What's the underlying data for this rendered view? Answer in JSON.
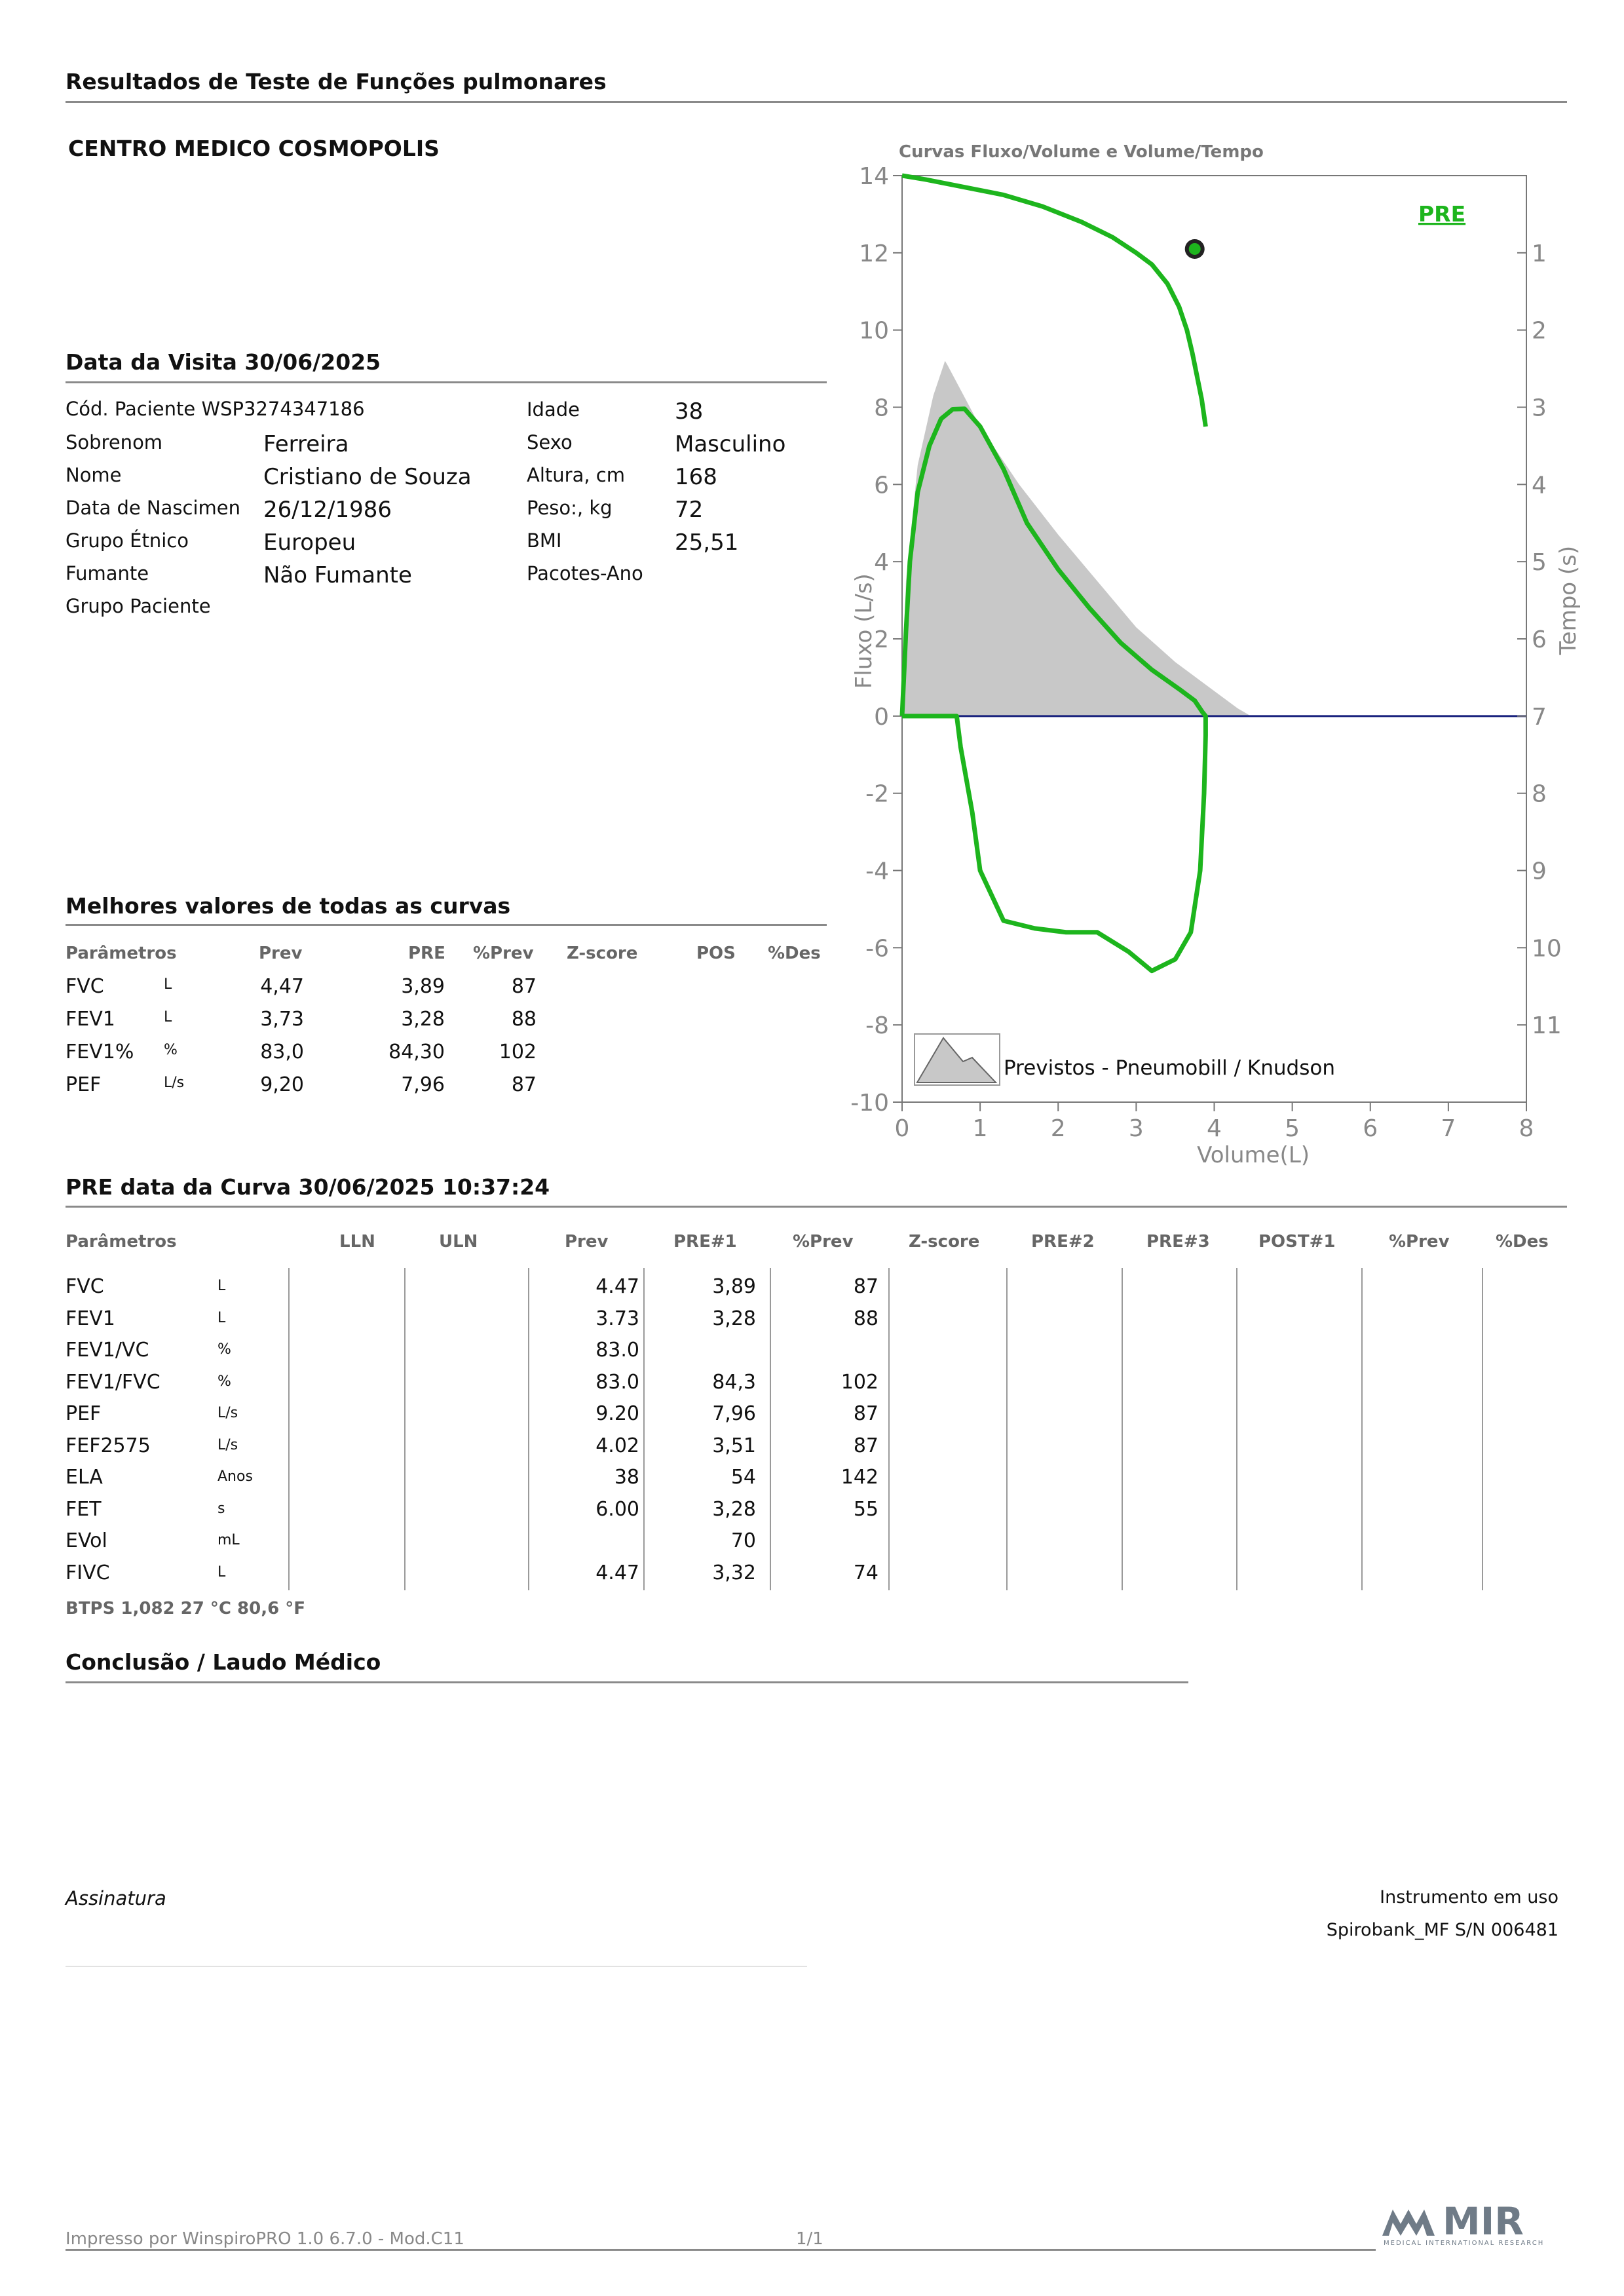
{
  "header": {
    "title": "Resultados de Teste de Funções pulmonares",
    "center": "CENTRO MEDICO COSMOPOLIS"
  },
  "visit": {
    "title": "Data da Visita 30/06/2025"
  },
  "patient": {
    "code": "Cód. Paciente WSP3274347186",
    "rows_left": [
      {
        "label": "Sobrenom",
        "value": "Ferreira"
      },
      {
        "label": "Nome",
        "value": "Cristiano de Souza"
      },
      {
        "label": "Data de Nascimen",
        "value": "26/12/1986"
      },
      {
        "label": "Grupo Étnico",
        "value": "Europeu"
      },
      {
        "label": "Fumante",
        "value": "Não Fumante"
      },
      {
        "label": "Grupo Paciente",
        "value": ""
      }
    ],
    "rows_right": [
      {
        "label": "Idade",
        "value": "38"
      },
      {
        "label": "Sexo",
        "value": "Masculino"
      },
      {
        "label": "Altura, cm",
        "value": "168"
      },
      {
        "label": "Peso:, kg",
        "value": "72"
      },
      {
        "label": "BMI",
        "value": "25,51"
      },
      {
        "label": "Pacotes-Ano",
        "value": ""
      }
    ]
  },
  "best": {
    "title": "Melhores valores de todas as curvas",
    "headers": [
      "Parâmetros",
      "Prev",
      "PRE",
      "%Prev",
      "Z-score",
      "POS",
      "%Des"
    ],
    "rows": [
      {
        "param": "FVC",
        "unit": "L",
        "prev": "4,47",
        "pre": "3,89",
        "pprev": "87"
      },
      {
        "param": "FEV1",
        "unit": "L",
        "prev": "3,73",
        "pre": "3,28",
        "pprev": "88"
      },
      {
        "param": "FEV1%",
        "unit": "%",
        "prev": "83,0",
        "pre": "84,30",
        "pprev": "102"
      },
      {
        "param": "PEF",
        "unit": "L/s",
        "prev": "9,20",
        "pre": "7,96",
        "pprev": "87"
      }
    ]
  },
  "curve": {
    "title": "PRE data da Curva 30/06/2025   10:37:24",
    "headers": [
      "Parâmetros",
      "LLN",
      "ULN",
      "Prev",
      "PRE#1",
      "%Prev",
      "Z-score",
      "PRE#2",
      "PRE#3",
      "POST#1",
      "%Prev",
      "%Des"
    ],
    "rows": [
      {
        "param": "FVC",
        "unit": "L",
        "prev": "4.47",
        "pre1": "3,89",
        "pprev": "87"
      },
      {
        "param": "FEV1",
        "unit": "L",
        "prev": "3.73",
        "pre1": "3,28",
        "pprev": "88"
      },
      {
        "param": "FEV1/VC",
        "unit": "%",
        "prev": "83.0",
        "pre1": "",
        "pprev": ""
      },
      {
        "param": "FEV1/FVC",
        "unit": "%",
        "prev": "83.0",
        "pre1": "84,3",
        "pprev": "102"
      },
      {
        "param": "PEF",
        "unit": "L/s",
        "prev": "9.20",
        "pre1": "7,96",
        "pprev": "87"
      },
      {
        "param": "FEF2575",
        "unit": "L/s",
        "prev": "4.02",
        "pre1": "3,51",
        "pprev": "87"
      },
      {
        "param": "ELA",
        "unit": "Anos",
        "prev": "38",
        "pre1": "54",
        "pprev": "142"
      },
      {
        "param": "FET",
        "unit": "s",
        "prev": "6.00",
        "pre1": "3,28",
        "pprev": "55"
      },
      {
        "param": "EVol",
        "unit": "mL",
        "prev": "",
        "pre1": "70",
        "pprev": ""
      },
      {
        "param": "FIVC",
        "unit": "L",
        "prev": "4.47",
        "pre1": "3,32",
        "pprev": "74"
      }
    ],
    "btps": "BTPS  1,082  27 °C  80,6 °F"
  },
  "conclusion": {
    "title": "Conclusão / Laudo Médico"
  },
  "signature": {
    "label": "Assinatura"
  },
  "instrument": {
    "label": "Instrumento em uso",
    "value": "Spirobank_MF S/N 006481"
  },
  "footer": {
    "printed": "Impresso por WinspiroPRO 1.0 6.7.0 - Mod.C11",
    "page": "1/1"
  },
  "logo": {
    "text": "MIR",
    "subtitle": "MEDICAL INTERNATIONAL RESEARCH"
  },
  "chart_data": {
    "type": "line",
    "title": "Curvas Fluxo/Volume e Volume/Tempo",
    "xlabel": "Volume(L)",
    "ylabel": "Fluxo (L/s)",
    "y2label": "Tempo (s)",
    "xlim": [
      0,
      8
    ],
    "ylim": [
      -10,
      14
    ],
    "y2lim": [
      0,
      11
    ],
    "xticks": [
      "0",
      "1",
      "2",
      "3",
      "4",
      "5",
      "6",
      "7",
      "8"
    ],
    "yticks": [
      "-10",
      "-8",
      "-6",
      "-4",
      "-2",
      "0",
      "2",
      "4",
      "6",
      "8",
      "10",
      "12",
      "14"
    ],
    "y2ticks": [
      "1",
      "2",
      "3",
      "4",
      "5",
      "6",
      "7",
      "8",
      "9",
      "10",
      "11"
    ],
    "pre_label": "PRE",
    "legend": "Previstos - Pneumobill / Knudson",
    "colors": {
      "pre": "#1db51d",
      "predicted": "#c8c8c8",
      "zero_line": "#1a237e",
      "axis_text": "#888888"
    },
    "series": [
      {
        "name": "Previstos - Pneumobill / Knudson",
        "x": [
          0,
          0.05,
          0.2,
          0.4,
          0.55,
          0.58,
          1.0,
          1.5,
          2.0,
          2.5,
          3.0,
          3.5,
          3.9,
          4.3,
          4.47
        ],
        "y": [
          0,
          3.5,
          6.5,
          8.3,
          9.2,
          9.1,
          7.5,
          6.0,
          4.7,
          3.5,
          2.3,
          1.4,
          0.8,
          0.2,
          0
        ]
      },
      {
        "name": "PRE",
        "x": [
          0,
          0.05,
          0.1,
          0.2,
          0.35,
          0.5,
          0.65,
          0.8,
          1.0,
          1.3,
          1.6,
          2.0,
          2.4,
          2.8,
          3.2,
          3.55,
          3.75,
          3.85,
          3.89,
          3.89,
          3.87,
          3.82,
          3.7,
          3.5,
          3.2,
          2.9,
          2.5,
          2.1,
          1.7,
          1.3,
          1.0,
          0.9,
          0.75,
          0.7,
          0
        ],
        "y": [
          0,
          2.2,
          4.0,
          5.8,
          7.0,
          7.7,
          7.95,
          7.96,
          7.5,
          6.4,
          5.0,
          3.8,
          2.8,
          1.9,
          1.2,
          0.7,
          0.4,
          0.1,
          0,
          -0.5,
          -2.0,
          -4.0,
          -5.6,
          -6.3,
          -6.6,
          -6.1,
          -5.6,
          -5.6,
          -5.5,
          -5.3,
          -4.0,
          -2.5,
          -0.8,
          0,
          0
        ]
      },
      {
        "name": "PRE Volume/Tempo",
        "x": [
          0,
          0.3,
          0.8,
          1.3,
          1.8,
          2.3,
          2.7,
          3.0,
          3.2,
          3.4,
          3.55,
          3.65,
          3.72,
          3.78,
          3.84,
          3.89
        ],
        "y": [
          14,
          13.9,
          13.7,
          13.5,
          13.2,
          12.8,
          12.4,
          12.0,
          11.7,
          11.2,
          10.6,
          10.0,
          9.4,
          8.8,
          8.2,
          7.5
        ]
      }
    ],
    "point": {
      "x": 3.75,
      "y": 12.1
    }
  }
}
